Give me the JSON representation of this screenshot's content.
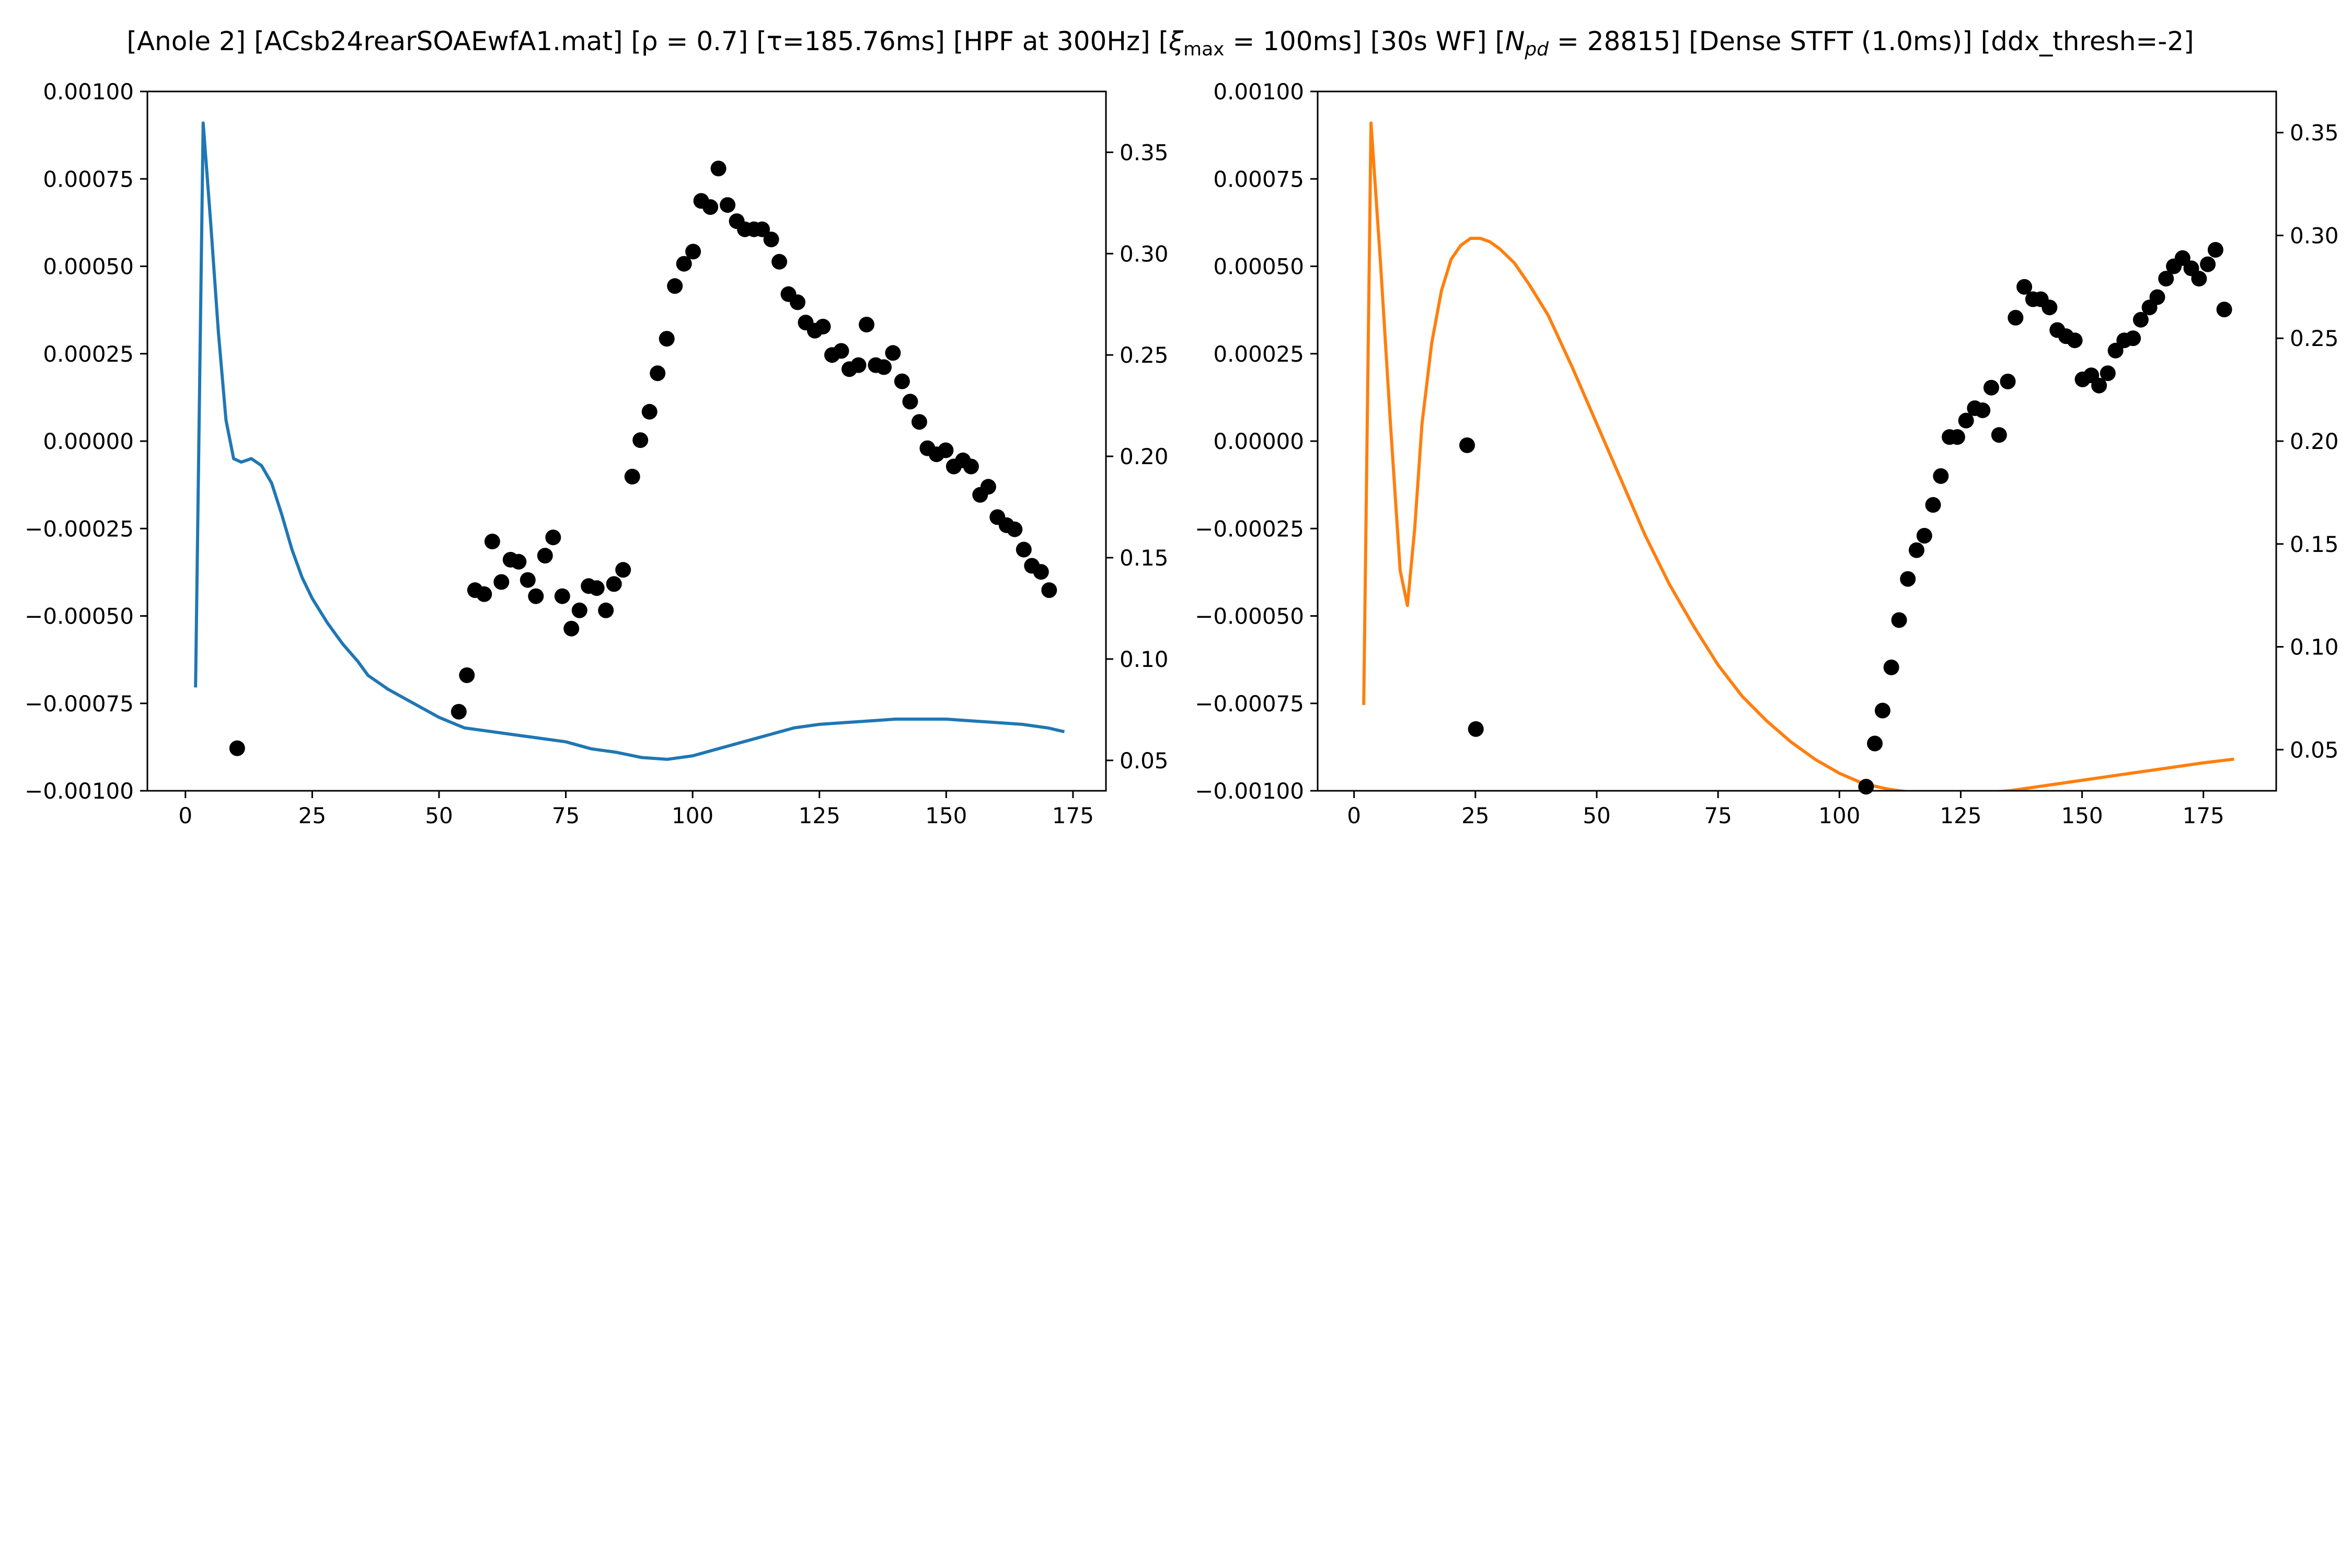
{
  "figure_title": "[Anole 2]   [ACsb24rearSOAEwfA1.mat]   [ρ = 0.7]   [τ=185.76ms]   [HPF at 300Hz]   [ξmax = 100ms]   [30s WF]   [Npd = 28815]   [Dense STFT (1.0ms)]   [ddx_thresh=-2]",
  "chart_data": [
    {
      "type": "line+scatter",
      "title": "",
      "xlabel": "",
      "ylabel_left": "",
      "ylabel_right": "",
      "xlim": [
        -7.5,
        181.5
      ],
      "ylim_left": [
        -0.001,
        0.001
      ],
      "ylim_right": [
        0.035,
        0.38
      ],
      "xticks": [
        0,
        25,
        50,
        75,
        100,
        125,
        150,
        175
      ],
      "yticks_left": [
        "0.00100",
        "0.00075",
        "0.00050",
        "0.00025",
        "0.00000",
        "−0.00025",
        "−0.00050",
        "−0.00075",
        "−0.00100"
      ],
      "yticks_left_values": [
        0.001,
        0.00075,
        0.0005,
        0.00025,
        0.0,
        -0.00025,
        -0.0005,
        -0.00075,
        -0.001
      ],
      "yticks_right": [
        "0.05",
        "0.10",
        "0.15",
        "0.20",
        "0.25",
        "0.30",
        "0.35"
      ],
      "yticks_right_values": [
        0.05,
        0.1,
        0.15,
        0.2,
        0.25,
        0.3,
        0.35
      ],
      "grid": false,
      "line_color": "#1f77b4",
      "scatter_color": "#000000",
      "line": {
        "axis": "left",
        "x": [
          2,
          3.5,
          5,
          6.5,
          8,
          9.5,
          11,
          13,
          15,
          17,
          19,
          21,
          23,
          25,
          28,
          31,
          34,
          36,
          40,
          45,
          50,
          55,
          60,
          65,
          70,
          75,
          80,
          85,
          90,
          95,
          100,
          105,
          110,
          115,
          120,
          125,
          130,
          135,
          140,
          145,
          150,
          155,
          160,
          165,
          170,
          173
        ],
        "y": [
          -0.0007,
          0.00091,
          0.00062,
          0.00031,
          6e-05,
          -5e-05,
          -6e-05,
          -5e-05,
          -7e-05,
          -0.00012,
          -0.00021,
          -0.00031,
          -0.00039,
          -0.00045,
          -0.00052,
          -0.00058,
          -0.00063,
          -0.00067,
          -0.00071,
          -0.00075,
          -0.00079,
          -0.00082,
          -0.00083,
          -0.00084,
          -0.00085,
          -0.00086,
          -0.00088,
          -0.00089,
          -0.000905,
          -0.00091,
          -0.0009,
          -0.00088,
          -0.00086,
          -0.00084,
          -0.00082,
          -0.00081,
          -0.000805,
          -0.0008,
          -0.000795,
          -0.000795,
          -0.000795,
          -0.0008,
          -0.000805,
          -0.00081,
          -0.00082,
          -0.00083
        ]
      },
      "points": {
        "axis": "right",
        "x": [
          10.2,
          53.9,
          55.5,
          57.1,
          58.9,
          60.5,
          62.3,
          64.1,
          65.7,
          67.5,
          69.1,
          70.9,
          72.5,
          74.3,
          76.1,
          77.7,
          79.5,
          81.1,
          82.9,
          84.5,
          86.3,
          88.1,
          89.7,
          91.5,
          93.1,
          94.9,
          96.5,
          98.3,
          100.1,
          101.7,
          103.5,
          105.1,
          106.9,
          108.7,
          110.3,
          112.1,
          113.7,
          115.5,
          117.1,
          118.9,
          120.7,
          122.3,
          124.1,
          125.7,
          127.5,
          129.3,
          130.9,
          132.7,
          134.3,
          136.1,
          137.7,
          139.5,
          141.3,
          142.9,
          144.7,
          146.3,
          148.1,
          149.9,
          151.5,
          153.3,
          154.9,
          156.7,
          158.3,
          160.1,
          161.9,
          163.5,
          165.3,
          166.9,
          168.7,
          170.3
        ],
        "y": [
          0.056,
          0.074,
          0.092,
          0.134,
          0.132,
          0.158,
          0.138,
          0.149,
          0.148,
          0.139,
          0.131,
          0.151,
          0.16,
          0.131,
          0.115,
          0.124,
          0.136,
          0.135,
          0.124,
          0.137,
          0.144,
          0.19,
          0.208,
          0.222,
          0.241,
          0.258,
          0.284,
          0.295,
          0.301,
          0.326,
          0.323,
          0.342,
          0.324,
          0.316,
          0.312,
          0.312,
          0.312,
          0.307,
          0.296,
          0.28,
          0.276,
          0.266,
          0.262,
          0.264,
          0.25,
          0.252,
          0.243,
          0.245,
          0.265,
          0.245,
          0.244,
          0.251,
          0.237,
          0.227,
          0.217,
          0.204,
          0.201,
          0.203,
          0.195,
          0.198,
          0.195,
          0.181,
          0.185,
          0.17,
          0.166,
          0.164,
          0.154,
          0.146,
          0.143,
          0.134
        ]
      }
    },
    {
      "type": "line+scatter",
      "title": "",
      "xlabel": "",
      "ylabel_left": "",
      "ylabel_right": "",
      "xlim": [
        -7.5,
        190
      ],
      "ylim_left": [
        -0.001,
        0.001
      ],
      "ylim_right": [
        0.03,
        0.37
      ],
      "xticks": [
        0,
        25,
        50,
        75,
        100,
        125,
        150,
        175
      ],
      "yticks_left": [
        "0.00100",
        "0.00075",
        "0.00050",
        "0.00025",
        "0.00000",
        "−0.00025",
        "−0.00050",
        "−0.00075",
        "−0.00100"
      ],
      "yticks_left_values": [
        0.001,
        0.00075,
        0.0005,
        0.00025,
        0.0,
        -0.00025,
        -0.0005,
        -0.00075,
        -0.001
      ],
      "yticks_right": [
        "0.05",
        "0.10",
        "0.15",
        "0.20",
        "0.25",
        "0.30",
        "0.35"
      ],
      "yticks_right_values": [
        0.05,
        0.1,
        0.15,
        0.2,
        0.25,
        0.3,
        0.35
      ],
      "grid": false,
      "line_color": "#ff7f0e",
      "scatter_color": "#000000",
      "line": {
        "axis": "left",
        "x": [
          2,
          3.5,
          5.5,
          7.5,
          9.5,
          11,
          12.5,
          14,
          16,
          18,
          20,
          22,
          24,
          26,
          28,
          30,
          33,
          36,
          40,
          45,
          50,
          55,
          60,
          65,
          70,
          75,
          80,
          85,
          90,
          95,
          100,
          105,
          110,
          115,
          120,
          125,
          130,
          135,
          140,
          145,
          150,
          155,
          160,
          165,
          170,
          175,
          181
        ],
        "y": [
          -0.00075,
          0.00091,
          0.0005,
          5e-05,
          -0.00037,
          -0.00047,
          -0.00025,
          5e-05,
          0.00028,
          0.00043,
          0.00052,
          0.00056,
          0.00058,
          0.00058,
          0.00057,
          0.00055,
          0.00051,
          0.00045,
          0.00036,
          0.00021,
          5e-05,
          -0.00011,
          -0.00027,
          -0.00041,
          -0.00053,
          -0.00064,
          -0.00073,
          -0.0008,
          -0.00086,
          -0.00091,
          -0.00095,
          -0.00098,
          -0.000995,
          -0.001005,
          -0.00101,
          -0.00101,
          -0.001005,
          -0.001,
          -0.00099,
          -0.00098,
          -0.00097,
          -0.00096,
          -0.00095,
          -0.00094,
          -0.00093,
          -0.00092,
          -0.00091
        ]
      },
      "points": {
        "axis": "right",
        "x": [
          23.3,
          25.1,
          105.5,
          107.3,
          108.9,
          110.7,
          112.3,
          114.1,
          115.9,
          117.5,
          119.3,
          120.9,
          122.7,
          124.3,
          126.1,
          127.9,
          129.5,
          131.3,
          132.9,
          134.7,
          136.3,
          138.1,
          139.9,
          141.5,
          143.3,
          144.9,
          146.7,
          148.5,
          150.1,
          151.9,
          153.5,
          155.3,
          156.9,
          158.7,
          160.5,
          162.1,
          163.9,
          165.5,
          167.3,
          168.9,
          170.7,
          172.5,
          174.1,
          175.9,
          177.5,
          179.3
        ],
        "y": [
          0.198,
          0.06,
          0.032,
          0.053,
          0.069,
          0.09,
          0.113,
          0.133,
          0.147,
          0.154,
          0.169,
          0.183,
          0.202,
          0.202,
          0.21,
          0.216,
          0.215,
          0.226,
          0.203,
          0.229,
          0.26,
          0.275,
          0.269,
          0.269,
          0.265,
          0.254,
          0.251,
          0.249,
          0.23,
          0.232,
          0.227,
          0.233,
          0.244,
          0.249,
          0.25,
          0.259,
          0.265,
          0.27,
          0.279,
          0.285,
          0.289,
          0.284,
          0.279,
          0.286,
          0.293,
          0.264
        ]
      }
    }
  ]
}
